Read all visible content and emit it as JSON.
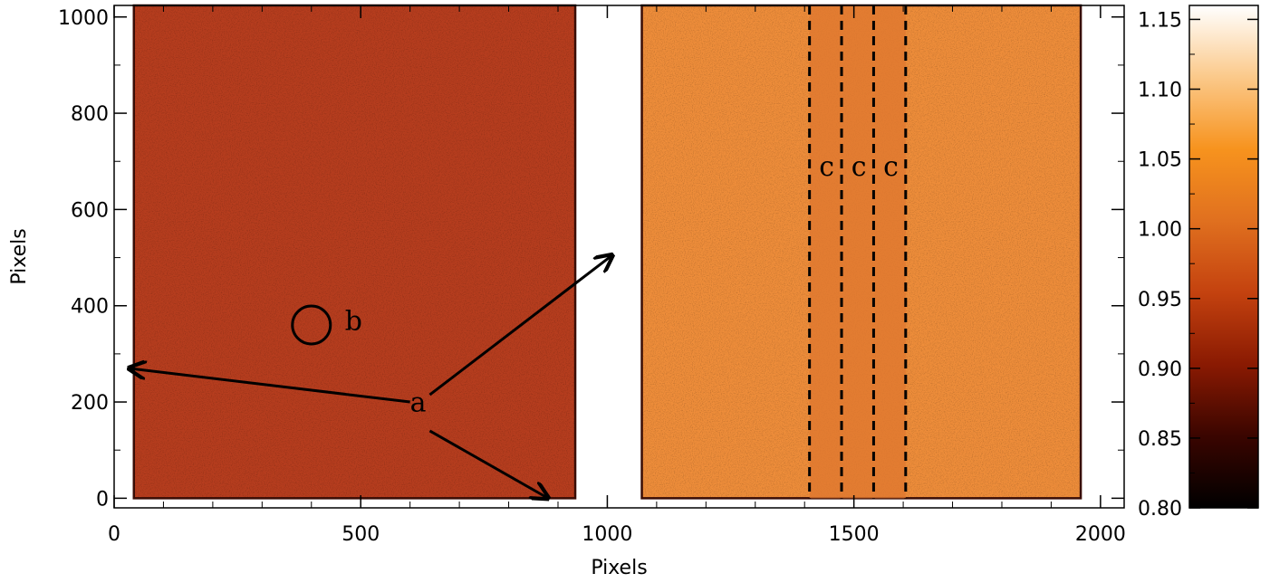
{
  "chart_data": {
    "type": "heatmap",
    "xlabel": "Pixels",
    "ylabel": "Pixels",
    "xlim": [
      0,
      2048
    ],
    "ylim": [
      -20,
      1024
    ],
    "x_ticks": [
      0,
      500,
      1000,
      1500,
      2000
    ],
    "x_tick_labels": [
      "0",
      "500",
      "1000",
      "1500",
      "2000"
    ],
    "y_ticks": [
      0,
      200,
      400,
      600,
      800,
      1000
    ],
    "y_tick_labels": [
      "0",
      "200",
      "400",
      "600",
      "800",
      "1000"
    ],
    "colorbar": {
      "range": [
        0.8,
        1.16
      ],
      "ticks": [
        0.8,
        0.85,
        0.9,
        0.95,
        1.0,
        1.05,
        1.1,
        1.15
      ],
      "tick_labels": [
        "0.80",
        "0.85",
        "0.90",
        "0.95",
        "1.00",
        "1.05",
        "1.10",
        "1.15"
      ],
      "colors": [
        "#000000",
        "#3a0500",
        "#8a1a02",
        "#c4420f",
        "#e0701f",
        "#f7931e",
        "#fbc98a",
        "#ffffff"
      ]
    },
    "panels": [
      {
        "x_range": [
          40,
          935
        ],
        "y_range": [
          0,
          1024
        ],
        "mean_value": 0.975,
        "color": "#b63d1e"
      },
      {
        "x_range": [
          1070,
          1960
        ],
        "y_range": [
          0,
          1024
        ],
        "mean_value": 1.05,
        "color": "#ee8d3a"
      }
    ],
    "dark_stripe": {
      "x_range": [
        1410,
        1605
      ],
      "color": "#e07830"
    },
    "dashed_lines_x": [
      1410,
      1475,
      1540,
      1605
    ],
    "annotations": {
      "a": {
        "text": "a",
        "x": 600,
        "y": 180
      },
      "b": {
        "text": "b",
        "x": 468,
        "y": 350
      },
      "c": [
        {
          "text": "c",
          "x": 1445,
          "y": 670
        },
        {
          "text": "c",
          "x": 1510,
          "y": 670
        },
        {
          "text": "c",
          "x": 1575,
          "y": 670
        }
      ]
    },
    "circle_b": {
      "x": 400,
      "y": 360
    },
    "arrows": [
      {
        "from": [
          600,
          200
        ],
        "to": [
          30,
          270
        ]
      },
      {
        "from": [
          640,
          215
        ],
        "to": [
          1010,
          505
        ]
      },
      {
        "from": [
          640,
          140
        ],
        "to": [
          880,
          0
        ]
      }
    ]
  }
}
